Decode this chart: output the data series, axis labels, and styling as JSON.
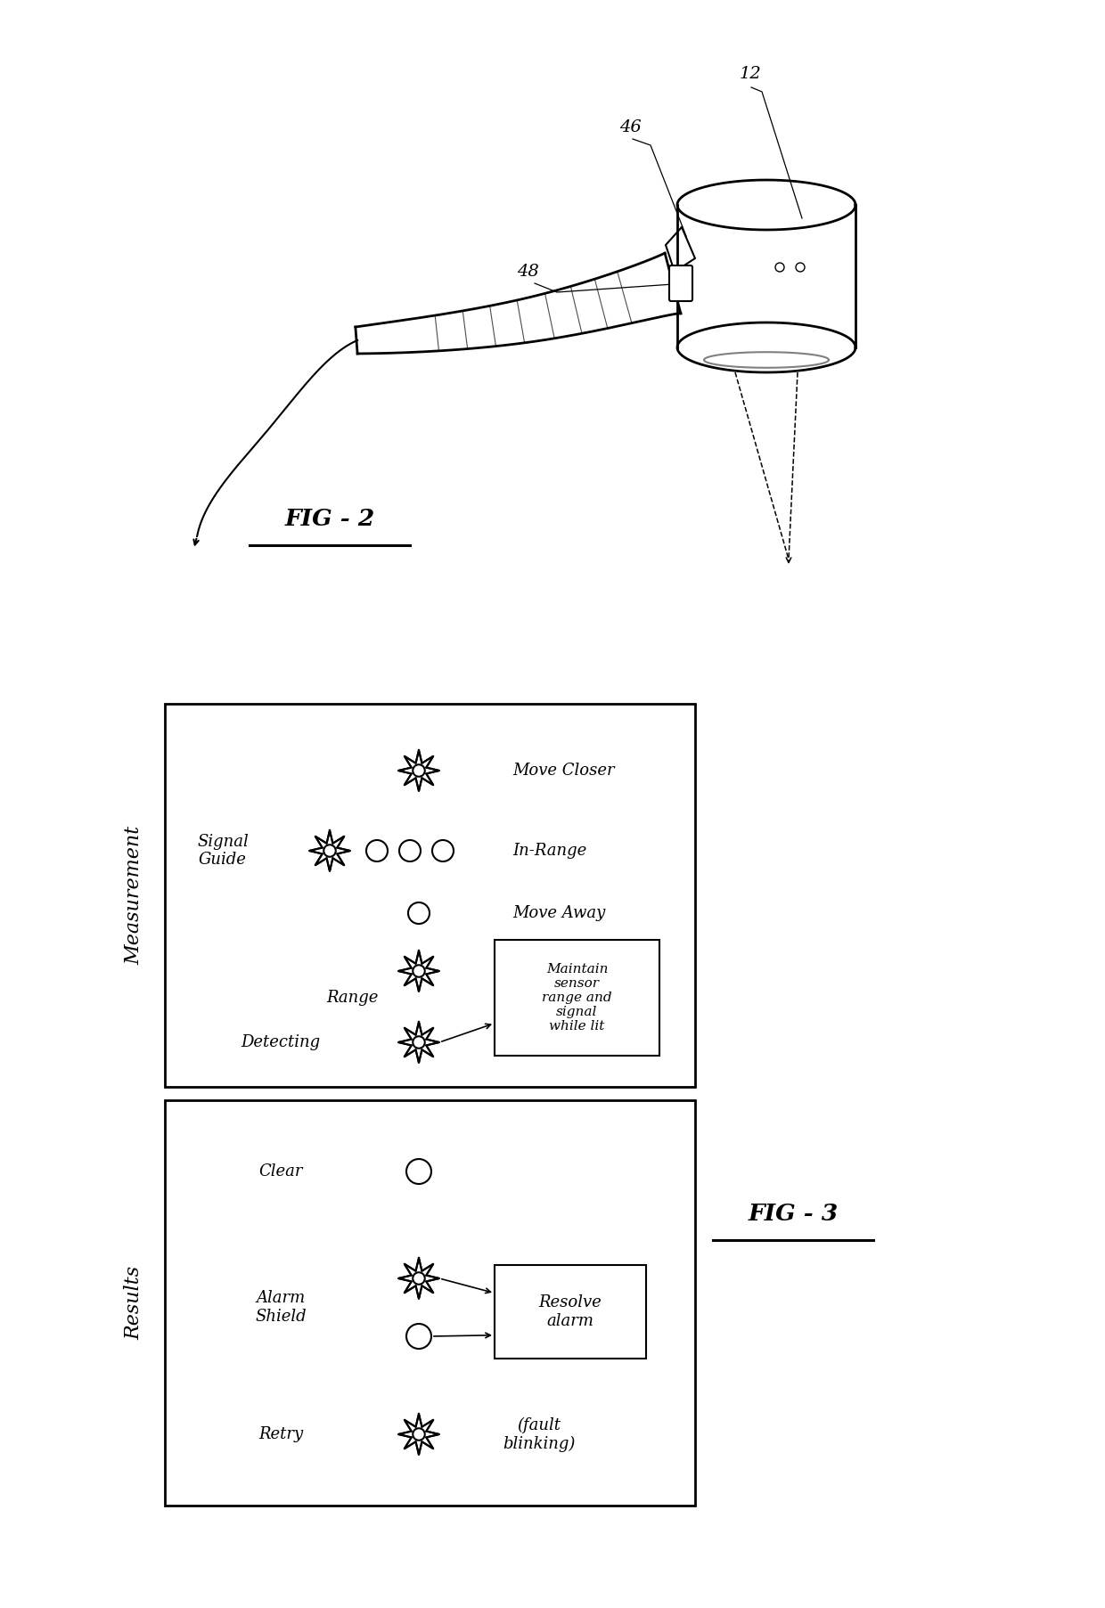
{
  "fig_width": 12.4,
  "fig_height": 18.05,
  "bg_color": "#ffffff",
  "fig2_label": "FIG - 2",
  "fig3_label": "FIG - 3",
  "label_12": "12",
  "label_46": "46",
  "label_48": "48",
  "measurement_label": "Measurement",
  "results_label": "Results",
  "signal_guide_label": "Signal\nGuide",
  "move_closer_label": "Move Closer",
  "in_range_label": "In-Range",
  "move_away_label": "Move Away",
  "range_label": "Range",
  "detecting_label": "Detecting",
  "maintain_label": "Maintain\nsensor\nrange and\nsignal\nwhile lit",
  "clear_label": "Clear",
  "alarm_shield_label": "Alarm\nShield",
  "retry_label": "Retry",
  "resolve_label": "Resolve\nalarm",
  "fault_label": "(fault\nblinking)"
}
